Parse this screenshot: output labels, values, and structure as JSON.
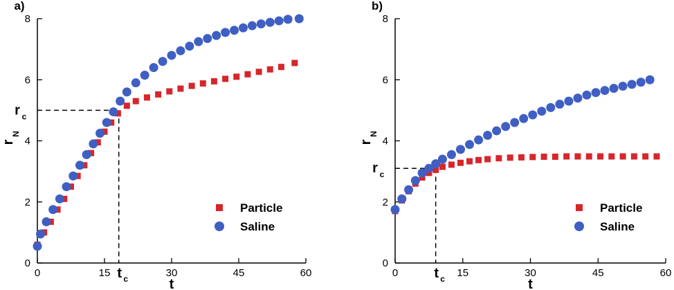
{
  "chart_data": [
    {
      "type": "scatter",
      "panel_label": "a)",
      "xlabel": "t",
      "ylabel": "r",
      "ylabel_sub": "N",
      "xlim": [
        0,
        60
      ],
      "ylim": [
        0,
        8
      ],
      "xticks": [
        0,
        15,
        30,
        45,
        60
      ],
      "yticks": [
        0,
        2,
        4,
        6,
        8
      ],
      "grid": false,
      "legend_position": "bottom-right",
      "critical": {
        "x": 18.2,
        "y": 5.0,
        "x_label": "t",
        "x_label_sub": "c",
        "y_label": "r",
        "y_label_sub": "c"
      },
      "series": [
        {
          "name": "Particle",
          "marker": "square",
          "color": "#d7262b",
          "x": [
            0,
            1.5,
            3,
            4.5,
            6,
            7.5,
            9,
            10.5,
            12,
            13.5,
            15,
            16.5,
            18,
            20,
            22,
            24.5,
            27,
            29.5,
            32,
            34.5,
            37,
            39.5,
            42,
            44.5,
            47,
            49.5,
            52,
            54.5,
            57.5
          ],
          "y": [
            0.6,
            1.0,
            1.35,
            1.75,
            2.1,
            2.5,
            2.85,
            3.2,
            3.6,
            3.95,
            4.3,
            4.6,
            4.9,
            5.15,
            5.3,
            5.42,
            5.52,
            5.62,
            5.71,
            5.8,
            5.88,
            5.95,
            6.03,
            6.1,
            6.18,
            6.26,
            6.34,
            6.42,
            6.55
          ]
        },
        {
          "name": "Saline",
          "marker": "circle",
          "color": "#3f5fc3",
          "x": [
            0,
            0.7,
            2,
            3.5,
            5,
            6.5,
            8,
            9.5,
            11,
            12.5,
            14,
            15.5,
            17,
            18.5,
            20,
            22,
            24,
            26,
            28,
            30,
            32,
            34,
            36,
            38,
            40,
            42,
            44,
            46,
            48,
            50,
            52,
            54,
            56,
            58.5
          ],
          "y": [
            0.55,
            0.95,
            1.35,
            1.75,
            2.1,
            2.5,
            2.85,
            3.2,
            3.55,
            3.9,
            4.25,
            4.6,
            4.95,
            5.3,
            5.6,
            5.9,
            6.15,
            6.4,
            6.6,
            6.8,
            6.95,
            7.1,
            7.25,
            7.35,
            7.45,
            7.55,
            7.62,
            7.7,
            7.77,
            7.83,
            7.88,
            7.93,
            7.98,
            8.0
          ]
        }
      ]
    },
    {
      "type": "scatter",
      "panel_label": "b)",
      "xlabel": "t",
      "ylabel": "r",
      "ylabel_sub": "N",
      "xlim": [
        0,
        60
      ],
      "ylim": [
        0,
        8
      ],
      "xticks": [
        0,
        15,
        30,
        45,
        60
      ],
      "yticks": [
        0,
        2,
        4,
        6,
        8
      ],
      "grid": false,
      "legend_position": "bottom-right",
      "critical": {
        "x": 9,
        "y": 3.1,
        "x_label": "t",
        "x_label_sub": "c",
        "y_label": "r",
        "y_label_sub": "c"
      },
      "series": [
        {
          "name": "Particle",
          "marker": "square",
          "color": "#d7262b",
          "x": [
            0,
            1.5,
            3,
            4.5,
            6,
            7.5,
            9,
            10.5,
            12.5,
            14.5,
            16.5,
            18.5,
            20.5,
            23,
            25.5,
            28,
            30.5,
            33,
            35.5,
            38,
            40.5,
            43,
            45.5,
            48,
            50.5,
            53,
            55.5,
            58
          ],
          "y": [
            1.7,
            2.05,
            2.35,
            2.6,
            2.8,
            2.95,
            3.05,
            3.15,
            3.22,
            3.28,
            3.33,
            3.37,
            3.4,
            3.43,
            3.45,
            3.46,
            3.47,
            3.48,
            3.48,
            3.49,
            3.49,
            3.49,
            3.49,
            3.49,
            3.49,
            3.49,
            3.49,
            3.49
          ]
        },
        {
          "name": "Saline",
          "marker": "circle",
          "color": "#3f5fc3",
          "x": [
            0,
            1.5,
            3,
            4.5,
            6,
            7.5,
            9,
            10.5,
            12.5,
            14.5,
            16.5,
            18.5,
            20.5,
            22.5,
            24.5,
            26.5,
            28.5,
            30.5,
            32.5,
            34.5,
            36.5,
            38.5,
            40.5,
            42.5,
            44.5,
            46.5,
            48.5,
            50.5,
            52.5,
            54.5,
            56.5
          ],
          "y": [
            1.75,
            2.1,
            2.4,
            2.7,
            2.95,
            3.1,
            3.25,
            3.4,
            3.55,
            3.72,
            3.88,
            4.03,
            4.18,
            4.33,
            4.47,
            4.6,
            4.73,
            4.85,
            4.97,
            5.09,
            5.2,
            5.3,
            5.4,
            5.5,
            5.58,
            5.65,
            5.72,
            5.79,
            5.85,
            5.92,
            6.0
          ]
        }
      ]
    }
  ]
}
